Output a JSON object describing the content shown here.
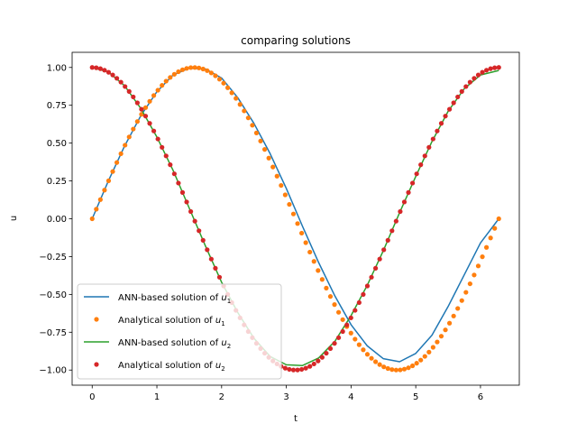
{
  "chart_data": {
    "type": "line",
    "title": "comparing solutions",
    "xlabel": "t",
    "ylabel": "u",
    "xlim": [
      -0.31,
      6.6
    ],
    "ylim": [
      -1.1,
      1.1
    ],
    "xticks": [
      0,
      1,
      2,
      3,
      4,
      5,
      6
    ],
    "xtick_labels": [
      "0",
      "1",
      "2",
      "3",
      "4",
      "5",
      "6"
    ],
    "yticks": [
      -1.0,
      -0.75,
      -0.5,
      -0.25,
      0.0,
      0.25,
      0.5,
      0.75,
      1.0
    ],
    "ytick_labels": [
      "−1.00",
      "−0.75",
      "−0.50",
      "−0.25",
      "0.00",
      "0.25",
      "0.50",
      "0.75",
      "1.00"
    ],
    "grid": false,
    "legend_position": "lower-left",
    "series": [
      {
        "name_prefix": "ANN-based solution of ",
        "name_var": "u",
        "name_sub": "1",
        "style": "line",
        "color": "#1f77b4",
        "x": [
          0,
          0.25,
          0.5,
          0.75,
          1.0,
          1.25,
          1.5,
          1.75,
          2.0,
          2.25,
          2.5,
          2.75,
          3.0,
          3.25,
          3.5,
          3.75,
          4.0,
          4.25,
          4.5,
          4.75,
          5.0,
          5.25,
          5.5,
          5.75,
          6.0,
          6.283
        ],
        "y": [
          0.0,
          0.25,
          0.48,
          0.68,
          0.84,
          0.95,
          0.995,
          0.99,
          0.93,
          0.8,
          0.63,
          0.43,
          0.2,
          -0.05,
          -0.29,
          -0.51,
          -0.7,
          -0.84,
          -0.925,
          -0.945,
          -0.89,
          -0.77,
          -0.58,
          -0.37,
          -0.16,
          0.0
        ]
      },
      {
        "name_prefix": "Analytical solution of ",
        "name_var": "u",
        "name_sub": "1",
        "style": "points",
        "color": "#ff7f0e",
        "function": "sin",
        "t_min": 0,
        "t_max": 6.2832,
        "n_points": 100
      },
      {
        "name_prefix": "ANN-based solution of ",
        "name_var": "u",
        "name_sub": "2",
        "style": "line",
        "color": "#2ca02c",
        "x": [
          0,
          0.25,
          0.5,
          0.75,
          1.0,
          1.25,
          1.5,
          1.75,
          2.0,
          2.25,
          2.5,
          2.75,
          3.0,
          3.25,
          3.5,
          3.75,
          4.0,
          4.25,
          4.5,
          4.75,
          5.0,
          5.25,
          5.5,
          5.75,
          6.0,
          6.283
        ],
        "y": [
          1.0,
          0.97,
          0.88,
          0.73,
          0.54,
          0.32,
          0.07,
          -0.18,
          -0.42,
          -0.62,
          -0.79,
          -0.91,
          -0.965,
          -0.97,
          -0.92,
          -0.81,
          -0.64,
          -0.44,
          -0.21,
          0.04,
          0.28,
          0.51,
          0.71,
          0.86,
          0.95,
          0.98
        ]
      },
      {
        "name_prefix": "Analytical solution of ",
        "name_var": "u",
        "name_sub": "2",
        "style": "points",
        "color": "#d62728",
        "function": "cos",
        "t_min": 0,
        "t_max": 6.2832,
        "n_points": 100
      }
    ]
  }
}
